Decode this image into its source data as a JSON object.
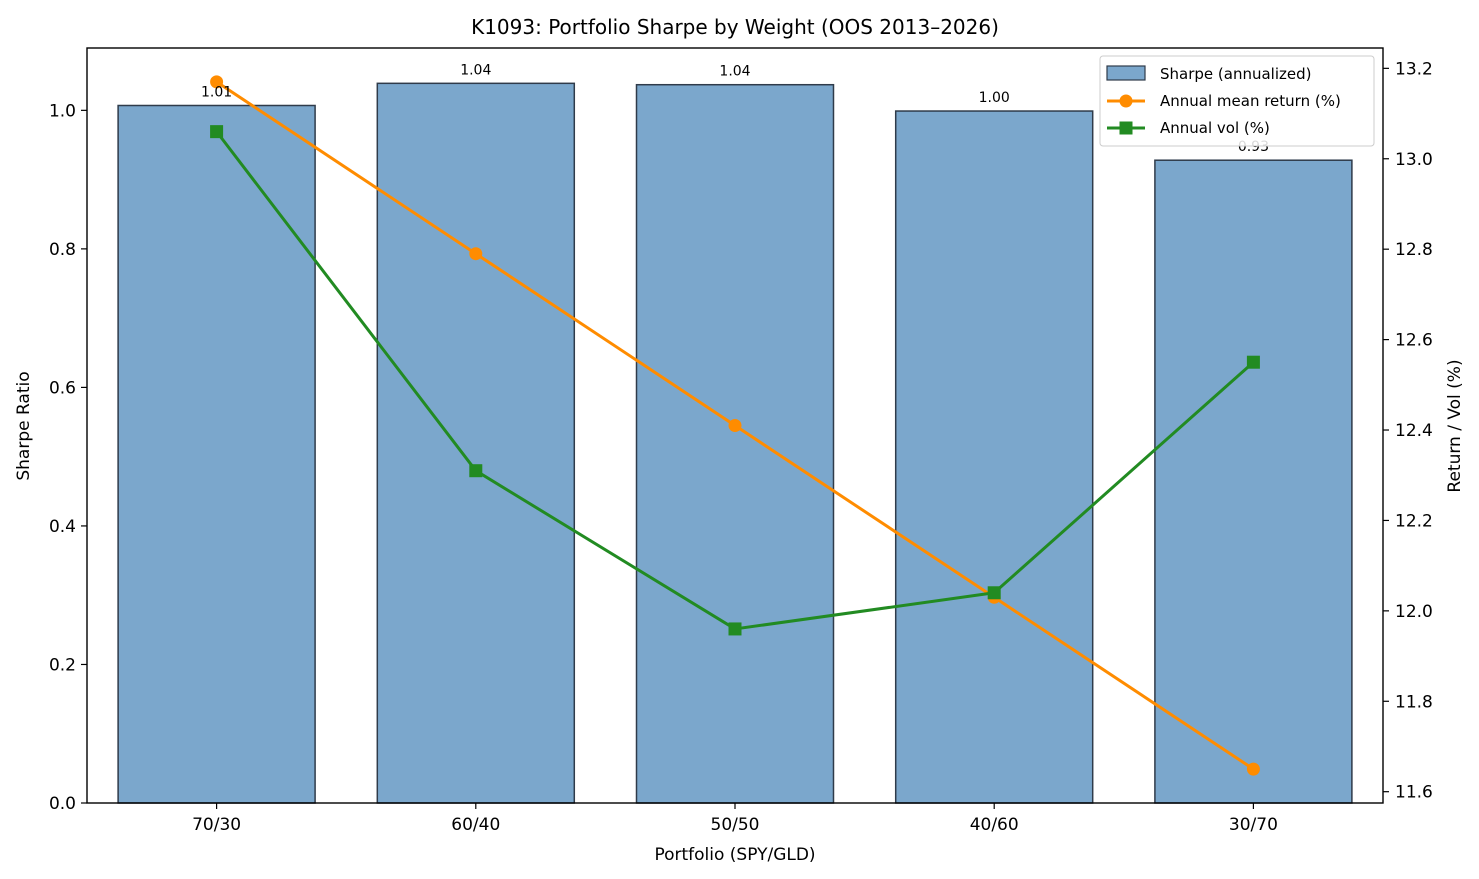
{
  "chart_data": {
    "type": "bar",
    "title": "K1093: Portfolio Sharpe by Weight (OOS 2013–2026)",
    "xlabel": "Portfolio (SPY/GLD)",
    "ylabel": "Sharpe Ratio",
    "y2label": "Return / Vol (%)",
    "categories": [
      "70/30",
      "60/40",
      "50/50",
      "40/60",
      "30/70"
    ],
    "ylim": [
      0,
      1.09
    ],
    "y2lim": [
      11.575,
      13.245
    ],
    "yticks": [
      "0.0",
      "0.2",
      "0.4",
      "0.6",
      "0.8",
      "1.0"
    ],
    "y2ticks": [
      "11.6",
      "11.8",
      "12.0",
      "12.2",
      "12.4",
      "12.6",
      "12.8",
      "13.0",
      "13.2"
    ],
    "grid": false,
    "legend_position": "top-right",
    "series": [
      {
        "name": "Sharpe (annualized)",
        "kind": "bar",
        "axis": "left",
        "color": "#7ba7cc",
        "edge_color": "#2f3b4a",
        "values": [
          1.007,
          1.039,
          1.037,
          0.999,
          0.928
        ],
        "labels": [
          "1.01",
          "1.04",
          "1.04",
          "1.00",
          "0.93"
        ]
      },
      {
        "name": "Annual mean return (%)",
        "kind": "line",
        "axis": "right",
        "marker": "circle",
        "color": "#ff8c00",
        "values": [
          13.17,
          12.79,
          12.41,
          12.03,
          11.65
        ]
      },
      {
        "name": "Annual vol (%)",
        "kind": "line",
        "axis": "right",
        "marker": "square",
        "color": "#228b22",
        "values": [
          13.06,
          12.31,
          11.96,
          12.04,
          12.55
        ]
      }
    ]
  }
}
